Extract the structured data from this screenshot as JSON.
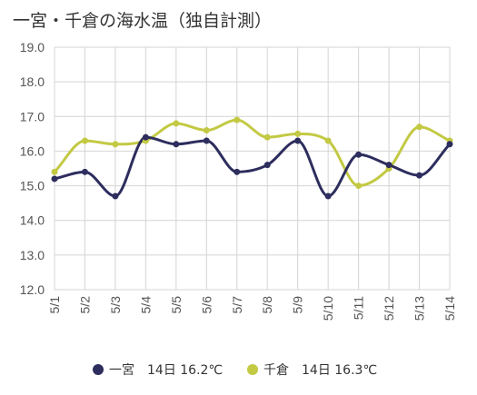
{
  "title": "一宮・千倉の海水温（独自計測）",
  "chart_data": {
    "type": "line",
    "title": "一宮・千倉の海水温（独自計測）",
    "categories": [
      "5/1",
      "5/2",
      "5/3",
      "5/4",
      "5/5",
      "5/6",
      "5/7",
      "5/8",
      "5/9",
      "5/10",
      "5/11",
      "5/12",
      "5/13",
      "5/14"
    ],
    "yticks": [
      "12.0",
      "13.0",
      "14.0",
      "15.0",
      "16.0",
      "17.0",
      "18.0",
      "19.0"
    ],
    "ylim": [
      12,
      19
    ],
    "grid": true,
    "legend_position": "bottom",
    "series": [
      {
        "name": "一宮",
        "legend_label": "一宮　14日 16.2℃",
        "color": "#2d2d5e",
        "values": [
          15.2,
          15.4,
          14.7,
          16.4,
          16.2,
          16.3,
          15.4,
          15.6,
          16.3,
          14.7,
          15.9,
          15.6,
          15.3,
          16.2
        ]
      },
      {
        "name": "千倉",
        "legend_label": "千倉　14日 16.3℃",
        "color": "#c3c943",
        "values": [
          15.4,
          16.3,
          16.2,
          16.3,
          16.8,
          16.6,
          16.9,
          16.4,
          16.5,
          16.3,
          15.0,
          15.5,
          16.7,
          16.3
        ]
      }
    ]
  }
}
